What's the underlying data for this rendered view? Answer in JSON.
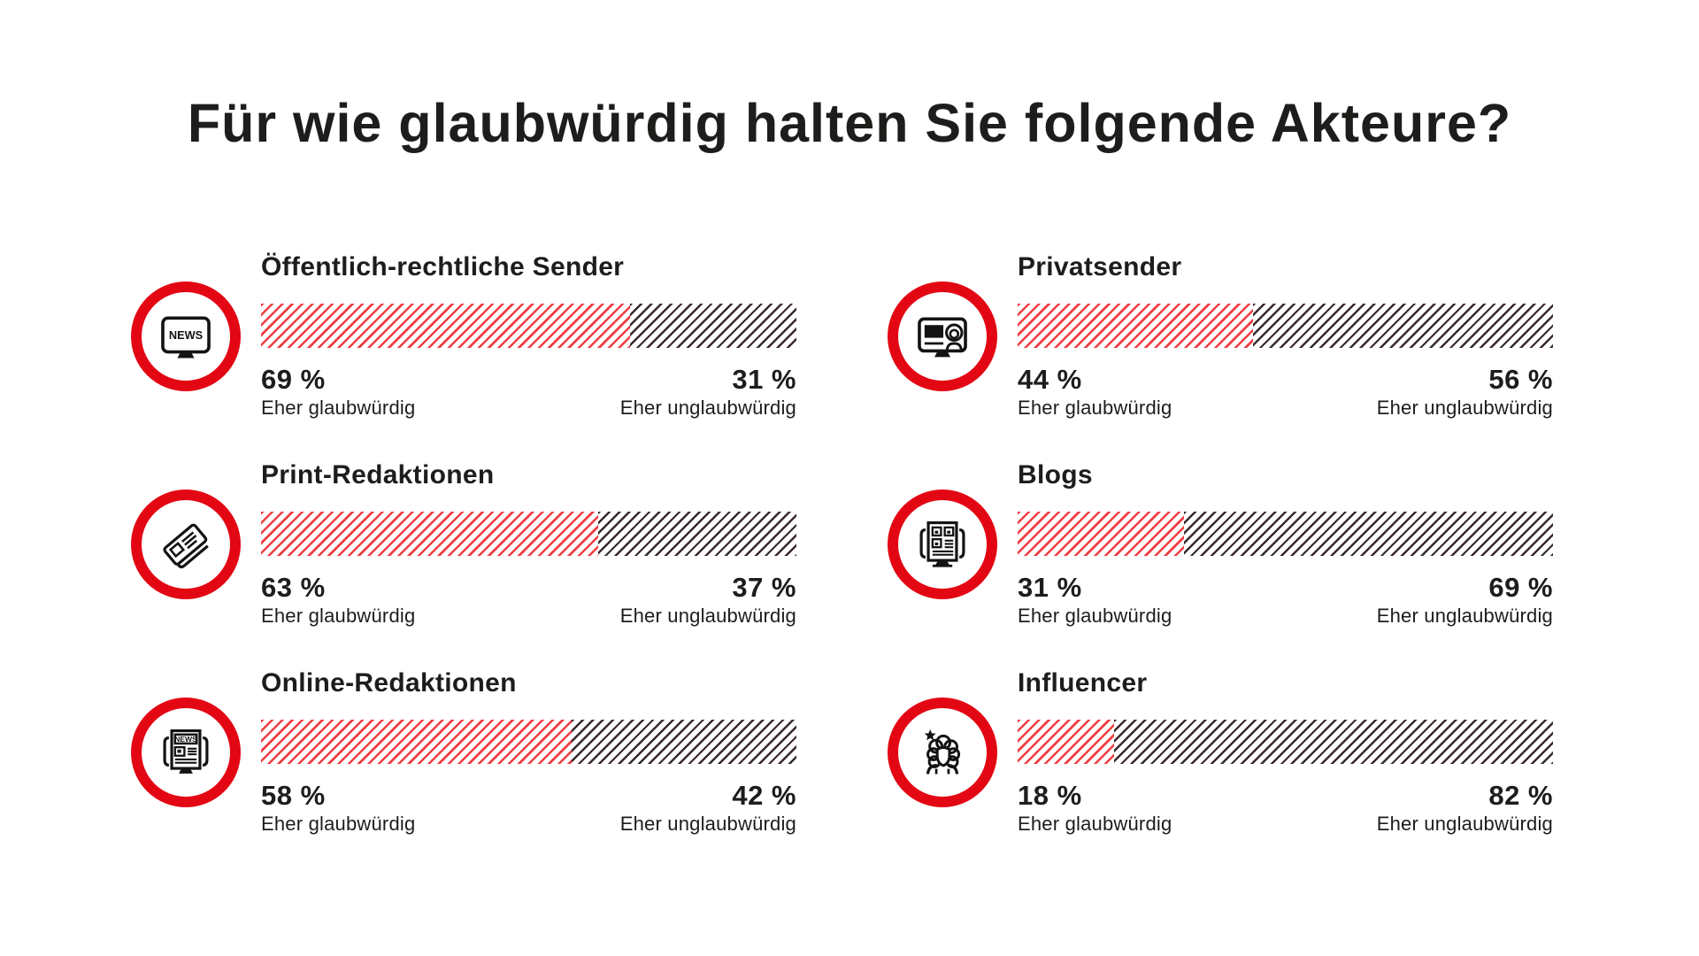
{
  "page": {
    "title": "Für wie glaubwürdig halten Sie folgende Akteure?"
  },
  "labels": {
    "positive": "Eher glaubwürdig",
    "negative": "Eher unglaubwürdig"
  },
  "colors": {
    "accent_red": "#e30613",
    "hatch_red": "#ee3e44",
    "hatch_dark": "#38292c",
    "text": "#1d1d1b",
    "background": "#ffffff"
  },
  "chart_data": {
    "type": "bar",
    "title": "Für wie glaubwürdig halten Sie folgende Akteure?",
    "unit": "percent",
    "layout": "2-column grid of per-actor 100% stacked horizontal bars; red diagonal hatch = Eher glaubwürdig, dark diagonal hatch = Eher unglaubwürdig; icon badge left of each bar",
    "series_labels": [
      "Eher glaubwürdig",
      "Eher unglaubwürdig"
    ],
    "items": [
      {
        "name": "Öffentlich-rechtliche Sender",
        "icon": "tv-news-icon",
        "glaubwuerdig": 69,
        "unglaubwuerdig": 31,
        "pos_display": "69 %",
        "neg_display": "31 %"
      },
      {
        "name": "Privatsender",
        "icon": "news-presenter-icon",
        "glaubwuerdig": 44,
        "unglaubwuerdig": 56,
        "pos_display": "44 %",
        "neg_display": "56 %"
      },
      {
        "name": "Print-Redaktionen",
        "icon": "newspaper-icon",
        "glaubwuerdig": 63,
        "unglaubwuerdig": 37,
        "pos_display": "63 %",
        "neg_display": "37 %"
      },
      {
        "name": "Blogs",
        "icon": "blog-page-icon",
        "glaubwuerdig": 31,
        "unglaubwuerdig": 69,
        "pos_display": "31 %",
        "neg_display": "69 %"
      },
      {
        "name": "Online-Redaktionen",
        "icon": "online-news-icon",
        "glaubwuerdig": 58,
        "unglaubwuerdig": 42,
        "pos_display": "58 %",
        "neg_display": "42 %"
      },
      {
        "name": "Influencer",
        "icon": "influencer-icon",
        "glaubwuerdig": 18,
        "unglaubwuerdig": 82,
        "pos_display": "18 %",
        "neg_display": "82 %"
      }
    ]
  }
}
